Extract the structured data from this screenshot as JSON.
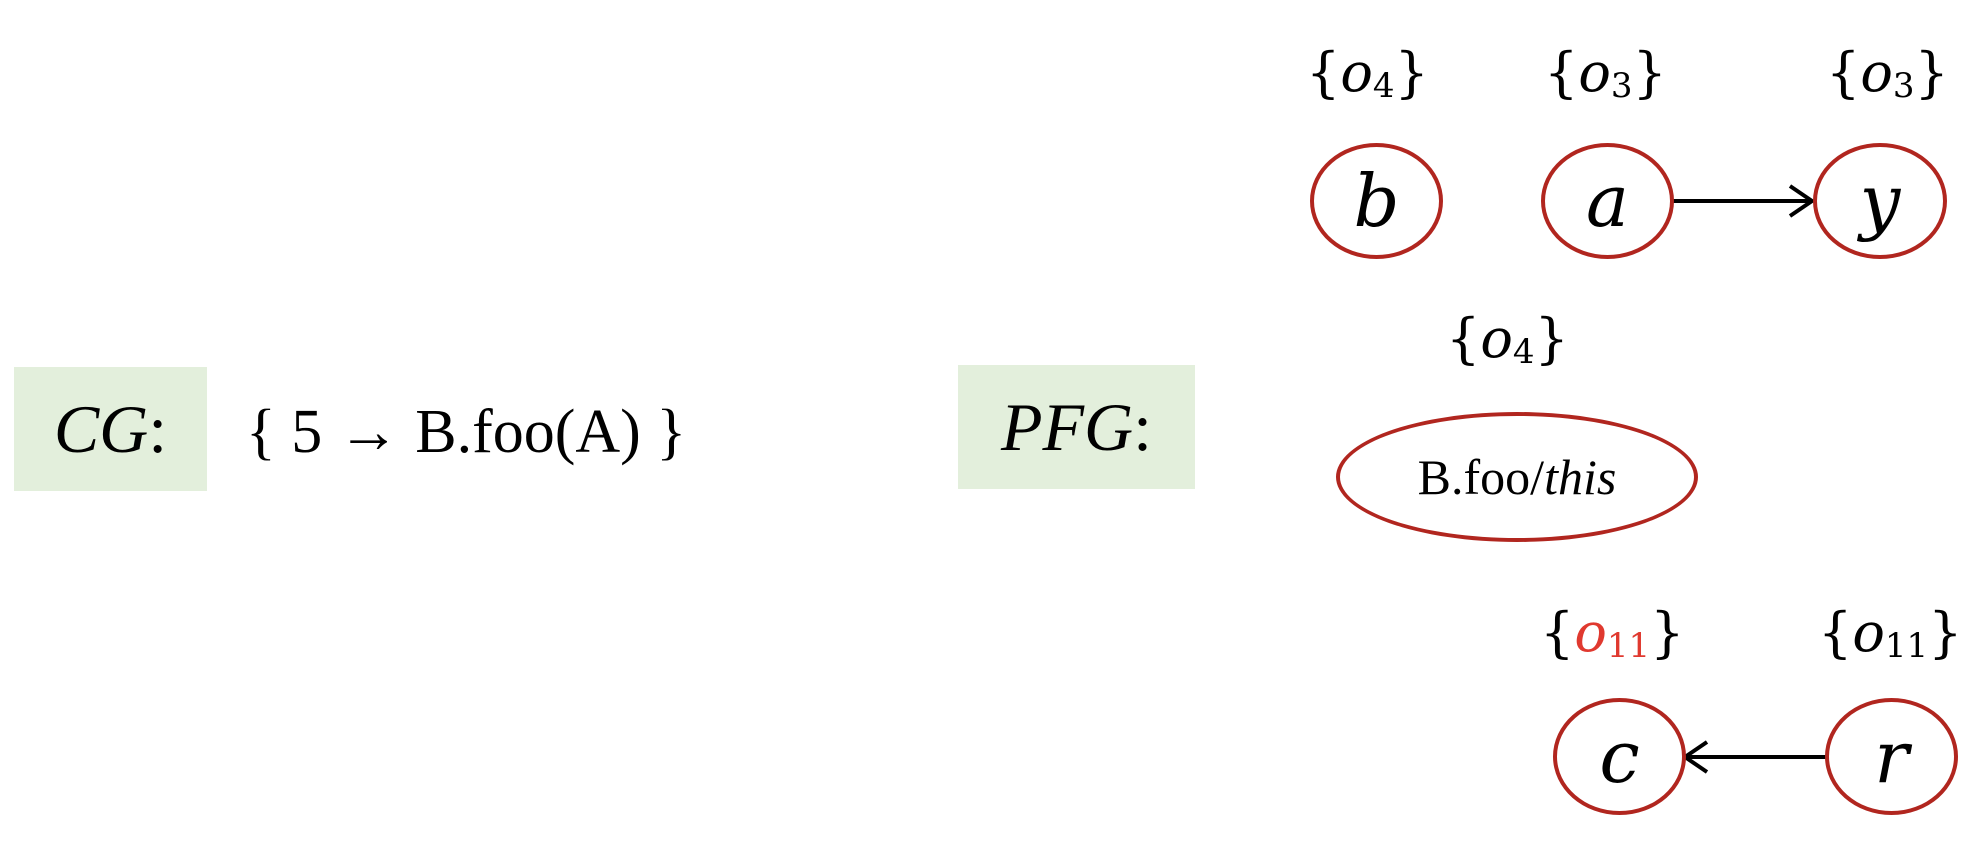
{
  "cg": {
    "label_var": "CG",
    "label_colon": ":",
    "set_text": "{ 5 → B.foo(A) }"
  },
  "pfg": {
    "label_var": "PFG",
    "label_colon": ":"
  },
  "nodes": {
    "b": {
      "label": "b",
      "pts_obj": "o",
      "pts_sub": "4"
    },
    "a": {
      "label": "a",
      "pts_obj": "o",
      "pts_sub": "3"
    },
    "y": {
      "label": "y",
      "pts_obj": "o",
      "pts_sub": "3"
    },
    "this": {
      "label_prefix": "B.foo/",
      "label_italic": "this",
      "pts_obj": "o",
      "pts_sub": "4"
    },
    "c": {
      "label": "c",
      "pts_obj": "o",
      "pts_sub": "11",
      "pts_highlight_color": "#e0392f"
    },
    "r": {
      "label": "r",
      "pts_obj": "o",
      "pts_sub": "11"
    }
  },
  "edges": [
    {
      "from": "a",
      "to": "y"
    },
    {
      "from": "r",
      "to": "c"
    }
  ],
  "colors": {
    "node_border": "#b1261f",
    "label_bg": "#e3efdc",
    "highlight": "#e0392f",
    "edge": "#000000"
  }
}
